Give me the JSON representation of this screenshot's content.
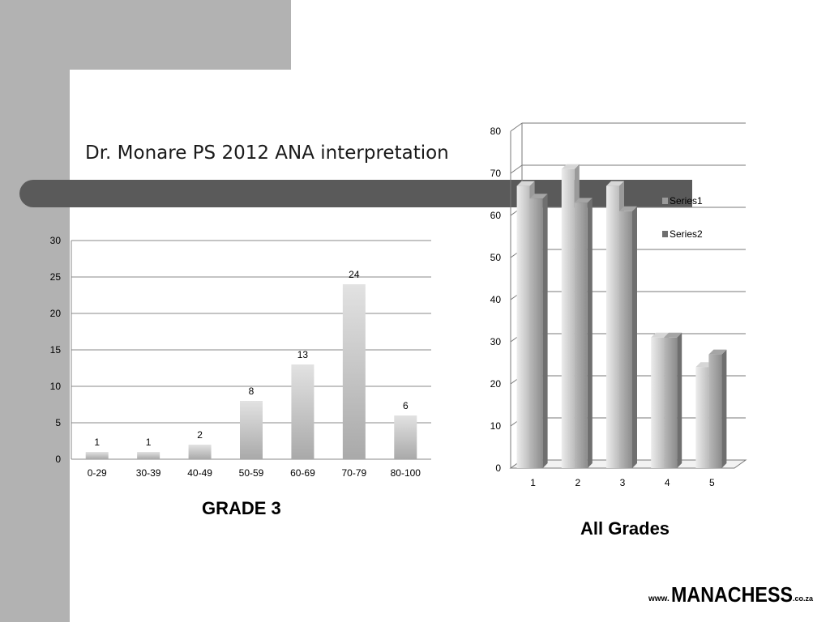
{
  "slide": {
    "title": "Dr. Monare PS 2012 ANA interpretation",
    "background_color": "#ffffff",
    "band_color": "#b2b2b2",
    "bar_color": "#5a5a5a"
  },
  "captions": {
    "left": "GRADE 3",
    "right": "All Grades"
  },
  "logo": {
    "prefix": "www.",
    "brand": "MANACHESS",
    "suffix": ".co.za"
  },
  "chart_data": [
    {
      "type": "bar",
      "categories": [
        "0-29",
        "30-39",
        "40-49",
        "50-59",
        "60-69",
        "70-79",
        "80-100"
      ],
      "values": [
        1,
        1,
        2,
        8,
        13,
        24,
        6
      ],
      "data_labels": true,
      "ylim": [
        0,
        30
      ],
      "yticks": [
        0,
        5,
        10,
        15,
        20,
        25,
        30
      ],
      "grid": true,
      "legend": false
    },
    {
      "type": "bar",
      "categories": [
        "1",
        "2",
        "3",
        "4",
        "5"
      ],
      "series": [
        {
          "name": "Series1",
          "values": [
            67,
            71,
            67,
            31,
            24
          ]
        },
        {
          "name": "Series2",
          "values": [
            64,
            63,
            61,
            31,
            27
          ]
        }
      ],
      "ylim": [
        0,
        80
      ],
      "yticks": [
        0,
        10,
        20,
        30,
        40,
        50,
        60,
        70,
        80
      ],
      "grid": true,
      "legend_position": "right",
      "style": "3d"
    }
  ]
}
